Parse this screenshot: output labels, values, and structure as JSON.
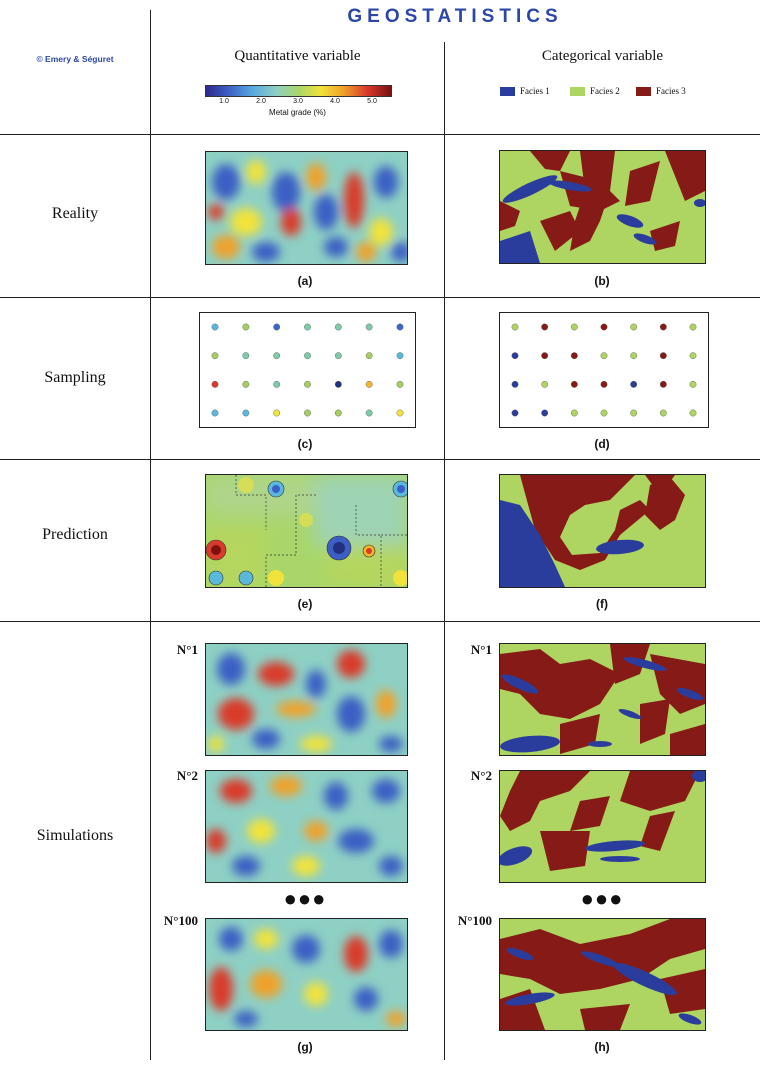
{
  "header": {
    "title": "GEOSTATISTICS",
    "copyright": "© Emery & Séguret",
    "col_quant": "Quantitative variable",
    "col_cat": "Categorical variable"
  },
  "colorbar": {
    "ticks": [
      "1.0",
      "2.0",
      "3.0",
      "4.0",
      "5.0"
    ],
    "label": "Metal grade (%)"
  },
  "facies_legend": [
    {
      "label": "Facies 1",
      "color": "#2a3d9c"
    },
    {
      "label": "Facies 2",
      "color": "#aed561"
    },
    {
      "label": "Facies 3",
      "color": "#861a16"
    }
  ],
  "rows": {
    "reality": "Reality",
    "sampling": "Sampling",
    "prediction": "Prediction",
    "simulations": "Simulations"
  },
  "captions": {
    "a": "(a)",
    "b": "(b)",
    "c": "(c)",
    "d": "(d)",
    "e": "(e)",
    "f": "(f)",
    "g": "(g)",
    "h": "(h)"
  },
  "simulations": {
    "n1": "N°1",
    "n2": "N°2",
    "n100": "N°100",
    "ellipsis": "●●●"
  },
  "colors": {
    "title_blue": "#2b47a8",
    "facies1": "#2a3d9c",
    "facies2": "#aed561",
    "facies3": "#861a16"
  },
  "sampling_quant": [
    [
      "#5ab8dd",
      "#a4cf60",
      "#3d67c7",
      "#7dcba9",
      "#7dcba9",
      "#7dcba9",
      "#3d67c7"
    ],
    [
      "#a4cf60",
      "#7dcba9",
      "#7dcba9",
      "#7dcba9",
      "#7dcba9",
      "#a4cf60",
      "#5ab8dd"
    ],
    [
      "#d93a2c",
      "#a4cf60",
      "#7dcba9",
      "#a4cf60",
      "#23307d",
      "#f0b62a",
      "#a4cf60"
    ],
    [
      "#5ab8dd",
      "#5ab8dd",
      "#f2e33a",
      "#a4cf60",
      "#a4cf60",
      "#7dcba9",
      "#f2e33a"
    ]
  ],
  "sampling_cat": [
    [
      "#aed561",
      "#861a16",
      "#aed561",
      "#861a16",
      "#aed561",
      "#861a16",
      "#aed561"
    ],
    [
      "#2a3d9c",
      "#861a16",
      "#861a16",
      "#aed561",
      "#aed561",
      "#861a16",
      "#aed561"
    ],
    [
      "#2a3d9c",
      "#aed561",
      "#861a16",
      "#861a16",
      "#2a3d9c",
      "#861a16",
      "#aed561"
    ],
    [
      "#2a3d9c",
      "#2a3d9c",
      "#aed561",
      "#aed561",
      "#aed561",
      "#aed561",
      "#aed561"
    ]
  ]
}
